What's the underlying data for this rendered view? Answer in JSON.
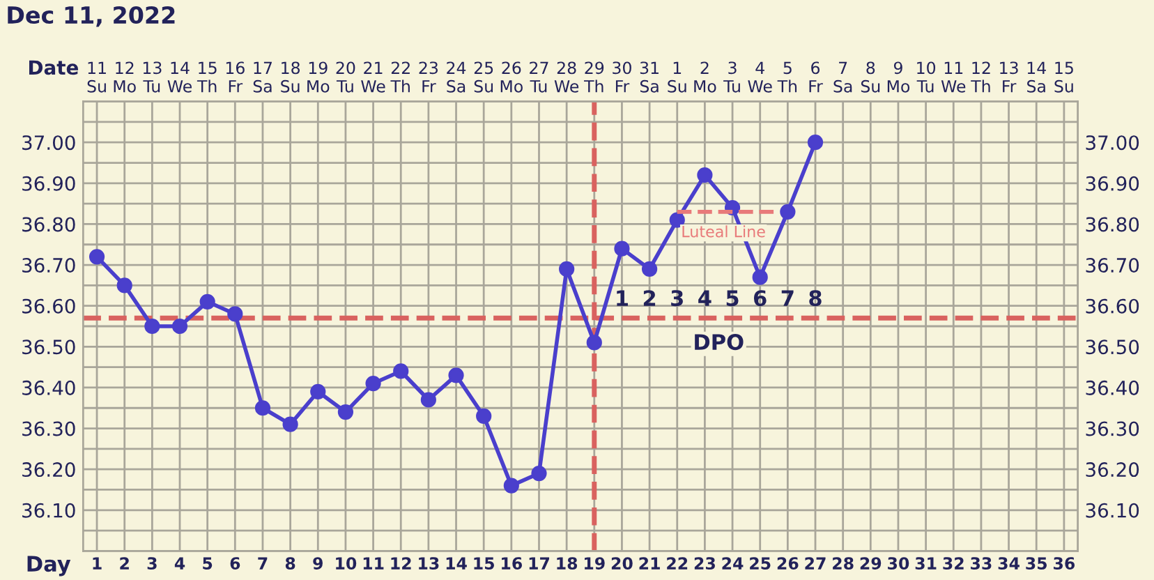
{
  "chart_data": {
    "type": "line",
    "title": "Dec 11, 2022",
    "xlabel": "Day",
    "x2label": "Date",
    "x": [
      1,
      2,
      3,
      4,
      5,
      6,
      7,
      8,
      9,
      10,
      11,
      12,
      13,
      14,
      15,
      16,
      17,
      18,
      19,
      20,
      21,
      22,
      23,
      24,
      25,
      26,
      27
    ],
    "series": [
      {
        "color": "#4a3fcc",
        "marker": "circle",
        "values": [
          36.72,
          36.65,
          36.55,
          36.55,
          36.61,
          36.58,
          36.35,
          36.31,
          36.39,
          36.34,
          36.41,
          36.44,
          36.37,
          36.43,
          36.33,
          36.16,
          36.19,
          36.69,
          36.51,
          36.74,
          36.69,
          36.81,
          36.92,
          36.84,
          36.67,
          36.83,
          37.0
        ]
      },
      {
        "type": "line",
        "name": "Luteal Line",
        "color": "#e87a7a",
        "line_style": "dashed",
        "marker": "none",
        "x": [
          22,
          25.6
        ],
        "values": [
          36.83,
          36.83
        ]
      }
    ],
    "xlim": [
      0.5,
      36.5
    ],
    "xticks": [
      1,
      2,
      3,
      4,
      5,
      6,
      7,
      8,
      9,
      10,
      11,
      12,
      13,
      14,
      15,
      16,
      17,
      18,
      19,
      20,
      21,
      22,
      23,
      24,
      25,
      26,
      27,
      28,
      29,
      30,
      31,
      32,
      33,
      34,
      35,
      36
    ],
    "x2lim": [
      "2022-12-10T12:00",
      "2023-01-15T12:00"
    ],
    "x2ticks": [
      {
        "value": "2022-12-11",
        "label": "11\nSu"
      },
      {
        "value": "2022-12-12",
        "label": "12\nMo"
      },
      {
        "value": "2022-12-13",
        "label": "13\nTu"
      },
      {
        "value": "2022-12-14",
        "label": "14\nWe"
      },
      {
        "value": "2022-12-15",
        "label": "15\nTh"
      },
      {
        "value": "2022-12-16",
        "label": "16\nFr"
      },
      {
        "value": "2022-12-17",
        "label": "17\nSa"
      },
      {
        "value": "2022-12-18",
        "label": "18\nSu"
      },
      {
        "value": "2022-12-19",
        "label": "19\nMo"
      },
      {
        "value": "2022-12-20",
        "label": "20\nTu"
      },
      {
        "value": "2022-12-21",
        "label": "21\nWe"
      },
      {
        "value": "2022-12-22",
        "label": "22\nTh"
      },
      {
        "value": "2022-12-23",
        "label": "23\nFr"
      },
      {
        "value": "2022-12-24",
        "label": "24\nSa"
      },
      {
        "value": "2022-12-25",
        "label": "25\nSu"
      },
      {
        "value": "2022-12-26",
        "label": "26\nMo"
      },
      {
        "value": "2022-12-27",
        "label": "27\nTu"
      },
      {
        "value": "2022-12-28",
        "label": "28\nWe"
      },
      {
        "value": "2022-12-29",
        "label": "29\nTh"
      },
      {
        "value": "2022-12-30",
        "label": "30\nFr"
      },
      {
        "value": "2022-12-31",
        "label": "31\nSa"
      },
      {
        "value": "2023-01-01",
        "label": "1\nSu"
      },
      {
        "value": "2023-01-02",
        "label": "2\nMo"
      },
      {
        "value": "2023-01-03",
        "label": "3\nTu"
      },
      {
        "value": "2023-01-04",
        "label": "4\nWe"
      },
      {
        "value": "2023-01-05",
        "label": "5\nTh"
      },
      {
        "value": "2023-01-06",
        "label": "6\nFr"
      },
      {
        "value": "2023-01-07",
        "label": "7\nSa"
      },
      {
        "value": "2023-01-08",
        "label": "8\nSu"
      },
      {
        "value": "2023-01-09",
        "label": "9\nMo"
      },
      {
        "value": "2023-01-10",
        "label": "10\nTu"
      },
      {
        "value": "2023-01-11",
        "label": "11\nWe"
      },
      {
        "value": "2023-01-12",
        "label": "12\nTh"
      },
      {
        "value": "2023-01-13",
        "label": "13\nFr"
      },
      {
        "value": "2023-01-14",
        "label": "14\nSa"
      },
      {
        "value": "2023-01-15",
        "label": "15\nSu"
      }
    ],
    "ylim": [
      36.0,
      37.1
    ],
    "yticks": [
      {
        "value": 36.05,
        "label": null
      },
      {
        "value": 36.1,
        "label": "36.10"
      },
      {
        "value": 36.15,
        "label": null
      },
      {
        "value": 36.2,
        "label": "36.20"
      },
      {
        "value": 36.25,
        "label": null
      },
      {
        "value": 36.3,
        "label": "36.30"
      },
      {
        "value": 36.35,
        "label": null
      },
      {
        "value": 36.4,
        "label": "36.40"
      },
      {
        "value": 36.45,
        "label": null
      },
      {
        "value": 36.5,
        "label": "36.50"
      },
      {
        "value": 36.55,
        "label": null
      },
      {
        "value": 36.6,
        "label": "36.60"
      },
      {
        "value": 36.65,
        "label": null
      },
      {
        "value": 36.7,
        "label": "36.70"
      },
      {
        "value": 36.75,
        "label": null
      },
      {
        "value": 36.8,
        "label": "36.80"
      },
      {
        "value": 36.85,
        "label": null
      },
      {
        "value": 36.9,
        "label": "36.90"
      },
      {
        "value": 36.95,
        "label": null
      },
      {
        "value": 37.0,
        "label": "37.00"
      },
      {
        "value": 37.05,
        "label": null
      }
    ],
    "y2lim": [
      36.0,
      37.1
    ],
    "y2ticks": [
      {
        "value": 36.05,
        "label": null
      },
      {
        "value": 36.1,
        "label": "36.10"
      },
      {
        "value": 36.15,
        "label": null
      },
      {
        "value": 36.2,
        "label": "36.20"
      },
      {
        "value": 36.25,
        "label": null
      },
      {
        "value": 36.3,
        "label": "36.30"
      },
      {
        "value": 36.35,
        "label": null
      },
      {
        "value": 36.4,
        "label": "36.40"
      },
      {
        "value": 36.45,
        "label": null
      },
      {
        "value": 36.5,
        "label": "36.50"
      },
      {
        "value": 36.55,
        "label": null
      },
      {
        "value": 36.6,
        "label": "36.60"
      },
      {
        "value": 36.65,
        "label": null
      },
      {
        "value": 36.7,
        "label": "36.70"
      },
      {
        "value": 36.75,
        "label": null
      },
      {
        "value": 36.8,
        "label": "36.80"
      },
      {
        "value": 36.85,
        "label": null
      },
      {
        "value": 36.9,
        "label": "36.90"
      },
      {
        "value": 36.95,
        "label": null
      },
      {
        "value": 37.0,
        "label": "37.00"
      },
      {
        "value": 37.05,
        "label": null
      }
    ],
    "ref_lines": [
      {
        "axis": "y",
        "value": 36.57,
        "color": "#d9625f",
        "line_style": "dashed"
      },
      {
        "axis": "x",
        "value": 19,
        "color": "#d9625f",
        "line_style": "dashed"
      }
    ],
    "annotations": [
      "1",
      "2",
      "3",
      "4",
      "5",
      "6",
      "7",
      "8",
      "DPO"
    ],
    "grid": true,
    "legend": false
  }
}
